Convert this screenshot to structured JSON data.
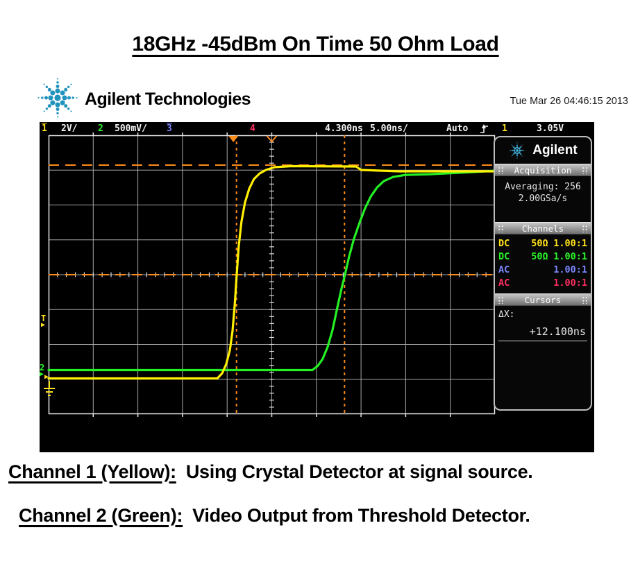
{
  "page": {
    "title": "18GHz -45dBm On Time 50 Ohm Load",
    "vendor": "Agilent Technologies",
    "timestamp": "Tue Mar 26 04:46:15 2013",
    "captions": [
      {
        "label": "Channel 1 (Yellow):",
        "text": "Using Crystal Detector at signal source."
      },
      {
        "label": "Channel 2 (Green):",
        "text": "Video Output from Threshold Detector."
      }
    ]
  },
  "scope": {
    "status_bar": {
      "ch1_num": "1",
      "ch1_scale": "2V/",
      "ch2_num": "2",
      "ch2_scale": "500mV/",
      "ch3_num": "3",
      "ch4_num": "4",
      "delay": "4.300ns",
      "timebase": "5.00ns/",
      "trigger_mode": "Auto",
      "trigger_source": "1",
      "trigger_level": "3.05V"
    },
    "sidebar": {
      "brand": "Agilent",
      "acquisition": {
        "title": "Acquisition",
        "lines": [
          "Averaging: 256",
          "2.00GSa/s"
        ]
      },
      "channels": {
        "title": "Channels",
        "rows": [
          {
            "coupling": "DC",
            "impedance": "50Ω",
            "probe": "1.00:1",
            "color": "#ffe11a"
          },
          {
            "coupling": "DC",
            "impedance": "50Ω",
            "probe": "1.00:1",
            "color": "#2af52a"
          },
          {
            "coupling": "AC",
            "impedance": "",
            "probe": "1.00:1",
            "color": "#7d86ff"
          },
          {
            "coupling": "AC",
            "impedance": "",
            "probe": "1.00:1",
            "color": "#ff2e62"
          }
        ]
      },
      "cursors": {
        "title": "Cursors",
        "dx_label": "ΔX:",
        "dx_value": "+12.100ns"
      }
    },
    "colors": {
      "ch1_trace": "#ffef00",
      "ch2_trace": "#24f024",
      "cursor_orange": "#ff8c1a",
      "grid_line": "#a8a8a8",
      "grid_border": "#e8e8e8",
      "spark_blue": "#2293bd",
      "spark_blue_light": "#3fb0d9"
    }
  },
  "chart_data": {
    "type": "line",
    "title": "18GHz -45dBm On Time 50 Ohm Load",
    "x_unit": "ns",
    "y_unit": "V",
    "time_per_div_ns": 5,
    "divisions_x": 10,
    "divisions_y": 8,
    "delay_ns": 4.3,
    "grid_on": true,
    "trigger": {
      "source_channel": 1,
      "level_V": 3.05,
      "mode": "Auto",
      "edge": "rising"
    },
    "cursors": {
      "x1_ns": 21.05,
      "x2_ns": 33.15,
      "dx_label": "+12.100ns",
      "y1_V_ch1": 12.24,
      "y2_V_ch1": 5.95
    },
    "series": [
      {
        "name": "Channel 1 (Yellow) - Crystal Detector at signal source",
        "color": "#ffef00",
        "volts_per_div": 2,
        "zero_div_from_bottom": 1.025,
        "points": [
          [
            0,
            0
          ],
          [
            18.9,
            0
          ],
          [
            19.45,
            0.3
          ],
          [
            19.9,
            0.82
          ],
          [
            20.3,
            1.61
          ],
          [
            20.6,
            2.69
          ],
          [
            20.85,
            4.2
          ],
          [
            21.07,
            5.95
          ],
          [
            21.3,
            7.58
          ],
          [
            21.6,
            8.98
          ],
          [
            22.0,
            10.09
          ],
          [
            22.47,
            10.88
          ],
          [
            23.0,
            11.44
          ],
          [
            23.65,
            11.76
          ],
          [
            24.35,
            11.96
          ],
          [
            25.3,
            12.12
          ],
          [
            27.2,
            12.18
          ],
          [
            34.45,
            12.16
          ],
          [
            35.0,
            11.96
          ],
          [
            39.3,
            11.88
          ],
          [
            50,
            11.88
          ]
        ]
      },
      {
        "name": "Channel 2 (Green) - Video Output from Threshold Detector",
        "color": "#24f024",
        "volts_per_div": 0.5,
        "zero_div_from_bottom": 1.264,
        "points": [
          [
            0,
            0
          ],
          [
            29.55,
            0
          ],
          [
            30.15,
            0.06
          ],
          [
            30.7,
            0.16
          ],
          [
            31.25,
            0.33
          ],
          [
            31.8,
            0.57
          ],
          [
            32.35,
            0.9
          ],
          [
            32.8,
            1.16
          ],
          [
            33.2,
            1.37
          ],
          [
            33.65,
            1.62
          ],
          [
            34.2,
            1.88
          ],
          [
            34.85,
            2.12
          ],
          [
            35.45,
            2.32
          ],
          [
            36.1,
            2.49
          ],
          [
            36.8,
            2.62
          ],
          [
            37.55,
            2.71
          ],
          [
            38.6,
            2.77
          ],
          [
            40.0,
            2.8
          ],
          [
            42.8,
            2.81
          ],
          [
            47.4,
            2.84
          ],
          [
            50,
            2.86
          ]
        ]
      }
    ]
  }
}
